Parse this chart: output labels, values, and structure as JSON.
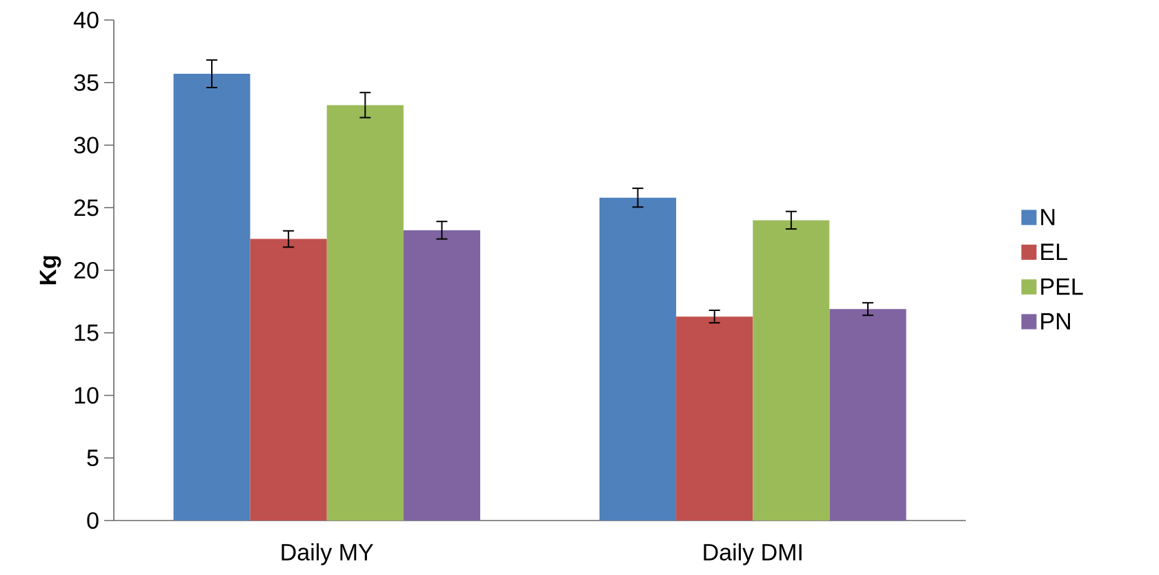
{
  "chart_data": {
    "type": "bar",
    "ylabel": "Kg",
    "categories": [
      "Daily MY",
      "Daily DMI"
    ],
    "series": [
      {
        "name": "N",
        "color": "#4f81bd",
        "values": [
          35.7,
          25.8
        ],
        "errors": [
          1.1,
          0.75
        ]
      },
      {
        "name": "EL",
        "color": "#c0504d",
        "values": [
          22.5,
          16.3
        ],
        "errors": [
          0.65,
          0.5
        ]
      },
      {
        "name": "PEL",
        "color": "#9bbb59",
        "values": [
          33.2,
          24.0
        ],
        "errors": [
          1.0,
          0.7
        ]
      },
      {
        "name": "PN",
        "color": "#8064a2",
        "values": [
          23.2,
          16.9
        ],
        "errors": [
          0.7,
          0.5
        ]
      }
    ],
    "ylim": [
      0,
      40
    ],
    "yticks": [
      0,
      5,
      10,
      15,
      20,
      25,
      30,
      35,
      40
    ],
    "grid": false,
    "legend": "right"
  }
}
